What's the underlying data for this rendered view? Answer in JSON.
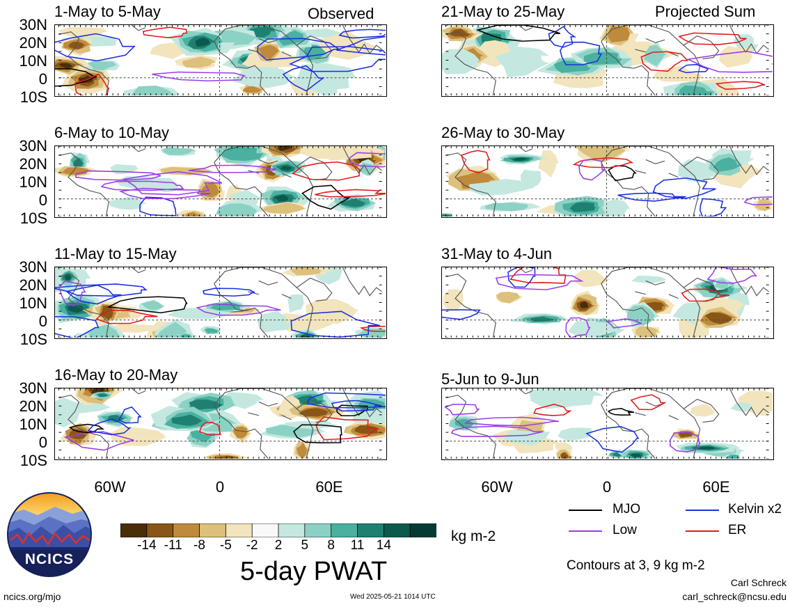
{
  "observed_label": "Observed",
  "projected_label": "Projected Sum",
  "panels": [
    {
      "title": "1-May to 5-May"
    },
    {
      "title": "6-May to 10-May"
    },
    {
      "title": "11-May to 15-May"
    },
    {
      "title": "16-May to 20-May"
    },
    {
      "title": "21-May to 25-May"
    },
    {
      "title": "26-May to 30-May"
    },
    {
      "title": "31-May to 4-Jun"
    },
    {
      "title": "5-Jun to 9-Jun"
    }
  ],
  "lat_labels": [
    "30N",
    "20N",
    "10N",
    "0",
    "10S"
  ],
  "lon_labels": [
    "60W",
    "0",
    "60E"
  ],
  "colorbar": {
    "title": "5-day PWAT",
    "units": "kg m-2",
    "tick_labels": [
      "-14",
      "-11",
      "-8",
      "-5",
      "-2",
      "2",
      "5",
      "8",
      "11",
      "14"
    ],
    "colors": [
      "#4a2e08",
      "#8a5618",
      "#c08a3c",
      "#dcc07c",
      "#f2e4bc",
      "#f8f8f8",
      "#c4e8e0",
      "#8cd2c4",
      "#4ab0a0",
      "#1e8070",
      "#0a5a4e",
      "#043c34"
    ]
  },
  "legend": {
    "items": [
      {
        "label": "MJO",
        "color": "#000000"
      },
      {
        "label": "Kelvin x2",
        "color": "#1a2ee0"
      },
      {
        "label": "Low",
        "color": "#9a3ce8"
      },
      {
        "label": "ER",
        "color": "#e01a1a"
      }
    ],
    "contours_note": "Contours at 3, 9 kg m-2"
  },
  "footer": {
    "author": "Carl Schreck",
    "email": "carl_schreck@ncsu.edu",
    "site": "ncics.org/mjo",
    "timestamp": "Wed 2025-05-21 1014 UTC",
    "logo_text": "NCICS"
  }
}
